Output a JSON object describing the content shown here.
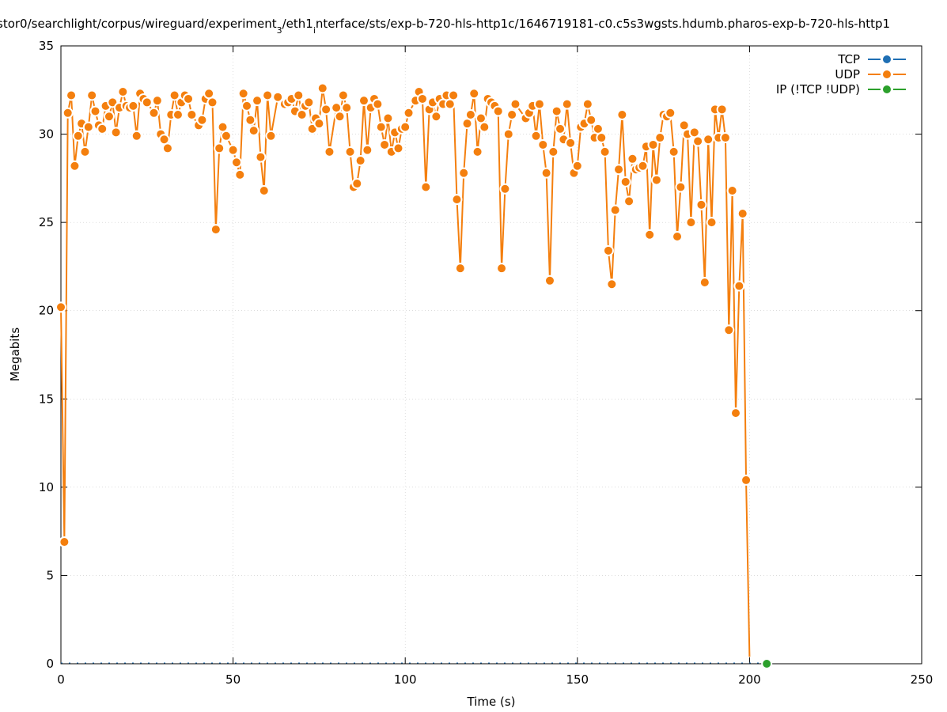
{
  "chart_data": {
    "type": "line",
    "title_parts": [
      "stor0/searchlight/corpus/wireguard/experiment",
      "3",
      "/eth1",
      "i",
      "nterface/sts/exp-b-720-hls-http1c/1646719181-c0.c5s3wgsts.hdumb.pharos-exp-b-720-hls-http1"
    ],
    "xlabel": "Time (s)",
    "ylabel": "Megabits",
    "xlim": [
      0,
      250
    ],
    "ylim": [
      0,
      35
    ],
    "xticks": [
      0,
      50,
      100,
      150,
      200,
      250
    ],
    "yticks": [
      0,
      5,
      10,
      15,
      20,
      25,
      30,
      35
    ],
    "grid": true,
    "legend_position": "top-right",
    "colors": {
      "TCP": "#1f6fb4",
      "UDP": "#f47f0e",
      "IP": "#2ca02c"
    },
    "series": [
      {
        "name": "TCP",
        "points": []
      },
      {
        "name": "UDP",
        "points": [
          [
            0,
            20.2
          ],
          [
            1,
            6.9
          ],
          [
            2,
            31.2
          ],
          [
            3,
            32.2
          ],
          [
            4,
            28.2
          ],
          [
            5,
            29.9
          ],
          [
            6,
            30.6
          ],
          [
            7,
            29.0
          ],
          [
            8,
            30.4
          ],
          [
            9,
            32.2
          ],
          [
            10,
            31.3
          ],
          [
            11,
            30.5
          ],
          [
            12,
            30.3
          ],
          [
            13,
            31.6
          ],
          [
            14,
            31.0
          ],
          [
            15,
            31.8
          ],
          [
            16,
            30.1
          ],
          [
            17,
            31.5
          ],
          [
            18,
            32.4
          ],
          [
            19,
            31.6
          ],
          [
            20,
            31.5
          ],
          [
            21,
            31.6
          ],
          [
            22,
            29.9
          ],
          [
            23,
            32.3
          ],
          [
            24,
            32.0
          ],
          [
            25,
            31.8
          ],
          [
            27,
            31.2
          ],
          [
            28,
            31.9
          ],
          [
            29,
            30.0
          ],
          [
            30,
            29.7
          ],
          [
            31,
            29.2
          ],
          [
            32,
            31.1
          ],
          [
            33,
            32.2
          ],
          [
            34,
            31.1
          ],
          [
            35,
            31.8
          ],
          [
            36,
            32.2
          ],
          [
            37,
            32.0
          ],
          [
            38,
            31.1
          ],
          [
            40,
            30.5
          ],
          [
            41,
            30.8
          ],
          [
            42,
            32.0
          ],
          [
            43,
            32.3
          ],
          [
            44,
            31.8
          ],
          [
            45,
            24.6
          ],
          [
            46,
            29.2
          ],
          [
            47,
            30.4
          ],
          [
            48,
            29.9
          ],
          [
            50,
            29.1
          ],
          [
            51,
            28.4
          ],
          [
            52,
            27.7
          ],
          [
            53,
            32.3
          ],
          [
            54,
            31.6
          ],
          [
            55,
            30.8
          ],
          [
            56,
            30.2
          ],
          [
            57,
            31.9
          ],
          [
            58,
            28.7
          ],
          [
            59,
            26.8
          ],
          [
            60,
            32.2
          ],
          [
            61,
            29.9
          ],
          [
            63,
            32.1
          ],
          [
            65,
            31.7
          ],
          [
            66,
            31.8
          ],
          [
            67,
            32.0
          ],
          [
            68,
            31.3
          ],
          [
            69,
            32.2
          ],
          [
            70,
            31.1
          ],
          [
            71,
            31.6
          ],
          [
            72,
            31.8
          ],
          [
            73,
            30.3
          ],
          [
            74,
            30.9
          ],
          [
            75,
            30.6
          ],
          [
            76,
            32.6
          ],
          [
            77,
            31.4
          ],
          [
            78,
            29.0
          ],
          [
            80,
            31.5
          ],
          [
            81,
            31.0
          ],
          [
            82,
            32.2
          ],
          [
            83,
            31.5
          ],
          [
            84,
            29.0
          ],
          [
            85,
            27.0
          ],
          [
            86,
            27.2
          ],
          [
            87,
            28.5
          ],
          [
            88,
            31.9
          ],
          [
            89,
            29.1
          ],
          [
            90,
            31.5
          ],
          [
            91,
            32.0
          ],
          [
            92,
            31.7
          ],
          [
            93,
            30.4
          ],
          [
            94,
            29.4
          ],
          [
            95,
            30.9
          ],
          [
            96,
            29.0
          ],
          [
            97,
            30.1
          ],
          [
            98,
            29.2
          ],
          [
            99,
            30.3
          ],
          [
            100,
            30.4
          ],
          [
            101,
            31.2
          ],
          [
            103,
            31.9
          ],
          [
            104,
            32.4
          ],
          [
            105,
            32.0
          ],
          [
            106,
            27.0
          ],
          [
            107,
            31.4
          ],
          [
            108,
            31.8
          ],
          [
            109,
            31.0
          ],
          [
            110,
            32.0
          ],
          [
            111,
            31.7
          ],
          [
            112,
            32.2
          ],
          [
            113,
            31.7
          ],
          [
            114,
            32.2
          ],
          [
            115,
            26.3
          ],
          [
            116,
            22.4
          ],
          [
            117,
            27.8
          ],
          [
            118,
            30.6
          ],
          [
            119,
            31.1
          ],
          [
            120,
            32.3
          ],
          [
            121,
            29.0
          ],
          [
            122,
            30.9
          ],
          [
            123,
            30.4
          ],
          [
            124,
            32.0
          ],
          [
            125,
            31.8
          ],
          [
            126,
            31.6
          ],
          [
            127,
            31.3
          ],
          [
            128,
            22.4
          ],
          [
            129,
            26.9
          ],
          [
            130,
            30.0
          ],
          [
            131,
            31.1
          ],
          [
            132,
            31.7
          ],
          [
            135,
            30.9
          ],
          [
            136,
            31.2
          ],
          [
            137,
            31.6
          ],
          [
            138,
            29.9
          ],
          [
            139,
            31.7
          ],
          [
            140,
            29.4
          ],
          [
            141,
            27.8
          ],
          [
            142,
            21.7
          ],
          [
            143,
            29.0
          ],
          [
            144,
            31.3
          ],
          [
            145,
            30.3
          ],
          [
            146,
            29.7
          ],
          [
            147,
            31.7
          ],
          [
            148,
            29.5
          ],
          [
            149,
            27.8
          ],
          [
            150,
            28.2
          ],
          [
            151,
            30.4
          ],
          [
            152,
            30.6
          ],
          [
            153,
            31.7
          ],
          [
            154,
            30.8
          ],
          [
            155,
            29.8
          ],
          [
            156,
            30.3
          ],
          [
            157,
            29.8
          ],
          [
            158,
            29.0
          ],
          [
            159,
            23.4
          ],
          [
            160,
            21.5
          ],
          [
            161,
            25.7
          ],
          [
            162,
            28.0
          ],
          [
            163,
            31.1
          ],
          [
            164,
            27.3
          ],
          [
            165,
            26.2
          ],
          [
            166,
            28.6
          ],
          [
            167,
            28.0
          ],
          [
            168,
            28.1
          ],
          [
            169,
            28.2
          ],
          [
            170,
            29.3
          ],
          [
            171,
            24.3
          ],
          [
            172,
            29.4
          ],
          [
            173,
            27.4
          ],
          [
            174,
            29.8
          ],
          [
            175,
            31.1
          ],
          [
            176,
            31.0
          ],
          [
            177,
            31.2
          ],
          [
            178,
            29.0
          ],
          [
            179,
            24.2
          ],
          [
            180,
            27.0
          ],
          [
            181,
            30.5
          ],
          [
            182,
            30.0
          ],
          [
            183,
            25.0
          ],
          [
            184,
            30.1
          ],
          [
            185,
            29.6
          ],
          [
            186,
            26.0
          ],
          [
            187,
            21.6
          ],
          [
            188,
            29.7
          ],
          [
            189,
            25.0
          ],
          [
            190,
            31.4
          ],
          [
            191,
            29.8
          ],
          [
            192,
            31.4
          ],
          [
            193,
            29.8
          ],
          [
            194,
            18.9
          ],
          [
            195,
            26.8
          ],
          [
            196,
            14.2
          ],
          [
            197,
            21.4
          ],
          [
            198,
            25.5
          ],
          [
            199,
            10.4
          ],
          [
            200,
            0.4
          ]
        ]
      },
      {
        "name": "IP (!TCP  !UDP)",
        "points": [
          [
            205,
            0
          ]
        ]
      }
    ]
  }
}
